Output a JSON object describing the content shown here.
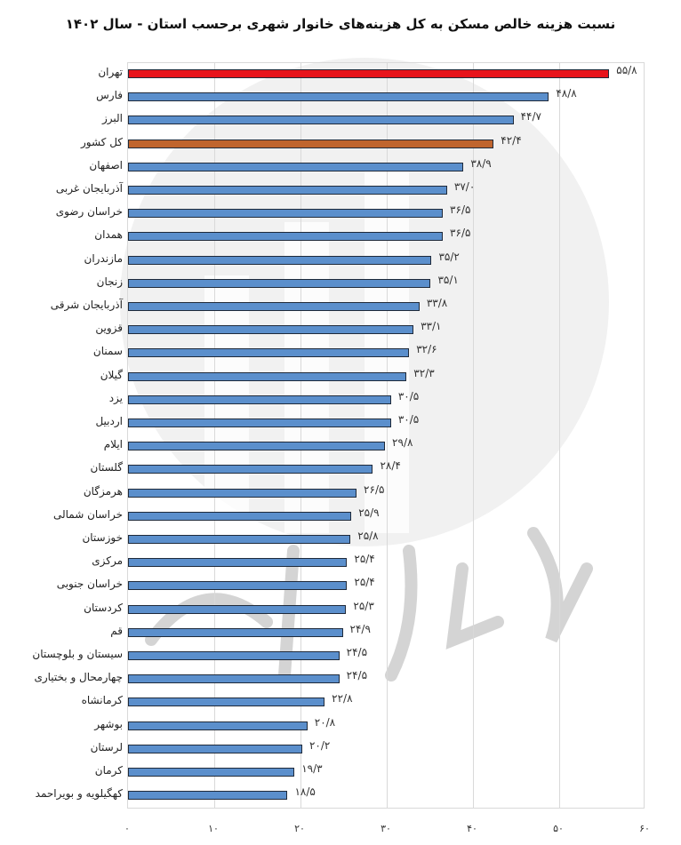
{
  "chart_data": {
    "type": "bar",
    "orientation": "horizontal",
    "title": "نسبت هزینه خالص مسکن به کل هزینه‌های خانوار شهری برحسب استان - سال ۱۴۰۲",
    "xlabel": "",
    "ylabel": "",
    "xlim": [
      0,
      60
    ],
    "xticks": [
      0,
      10,
      20,
      30,
      40,
      50,
      60
    ],
    "xtick_labels": [
      "۰",
      "۱۰",
      "۲۰",
      "۳۰",
      "۴۰",
      "۵۰",
      "۶۰"
    ],
    "grid": true,
    "legend": null,
    "categories": [
      "تهران",
      "فارس",
      "البرز",
      "کل کشور",
      "اصفهان",
      "آذربایجان غربی",
      "خراسان رضوی",
      "همدان",
      "مازندران",
      "زنجان",
      "آذربایجان شرقی",
      "قزوین",
      "سمنان",
      "گیلان",
      "یزد",
      "اردبیل",
      "ایلام",
      "گلستان",
      "هرمزگان",
      "خراسان شمالی",
      "خوزستان",
      "مرکزی",
      "خراسان جنوبی",
      "کردستان",
      "قم",
      "سیستان و بلوچستان",
      "چهارمحال و بختیاری",
      "کرمانشاه",
      "بوشهر",
      "لرستان",
      "کرمان",
      "کهگیلویه و بویراحمد"
    ],
    "values": [
      55.8,
      48.8,
      44.7,
      42.4,
      38.9,
      37.0,
      36.5,
      36.5,
      35.2,
      35.1,
      33.8,
      33.1,
      32.6,
      32.3,
      30.5,
      30.5,
      29.8,
      28.4,
      26.5,
      25.9,
      25.8,
      25.4,
      25.4,
      25.3,
      24.9,
      24.5,
      24.5,
      22.8,
      20.8,
      20.2,
      19.3,
      18.5
    ],
    "value_labels": [
      "۵۵/۸",
      "۴۸/۸",
      "۴۴/۷",
      "۴۲/۴",
      "۳۸/۹",
      "۳۷/۰",
      "۳۶/۵",
      "۳۶/۵",
      "۳۵/۲",
      "۳۵/۱",
      "۳۳/۸",
      "۳۳/۱",
      "۳۲/۶",
      "۳۲/۳",
      "۳۰/۵",
      "۳۰/۵",
      "۲۹/۸",
      "۲۸/۴",
      "۲۶/۵",
      "۲۵/۹",
      "۲۵/۸",
      "۲۵/۴",
      "۲۵/۴",
      "۲۵/۳",
      "۲۴/۹",
      "۲۴/۵",
      "۲۴/۵",
      "۲۲/۸",
      "۲۰/۸",
      "۲۰/۲",
      "۱۹/۳",
      "۱۸/۵"
    ],
    "colors": {
      "default": "#5b8fcc",
      "highlight_max": "#e8141c",
      "national_average": "#c0652e"
    },
    "highlight": {
      "تهران": "highlight_max",
      "کل کشور": "national_average"
    },
    "watermark": "مرکز آمار ایران"
  }
}
